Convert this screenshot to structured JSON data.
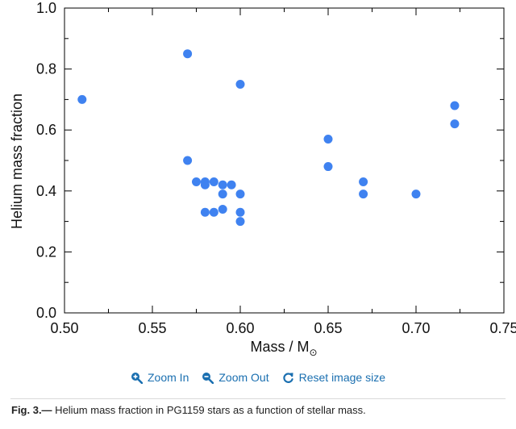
{
  "chart_data": {
    "type": "scatter",
    "title": "",
    "xlabel": "Mass / M",
    "xlabel_subscript": "⊙",
    "ylabel": "Helium mass fraction",
    "xlim": [
      0.5,
      0.75
    ],
    "ylim": [
      0.0,
      1.0
    ],
    "xticks": [
      0.5,
      0.55,
      0.6,
      0.65,
      0.7,
      0.75
    ],
    "yticks": [
      0.0,
      0.2,
      0.4,
      0.6,
      0.8,
      1.0
    ],
    "xtick_labels": [
      "0.50",
      "0.55",
      "0.60",
      "0.65",
      "0.70",
      "0.75"
    ],
    "ytick_labels": [
      "0.0",
      "0.2",
      "0.4",
      "0.6",
      "0.8",
      "1.0"
    ],
    "grid": false,
    "marker_color": "#3f82f0",
    "points": [
      {
        "x": 0.51,
        "y": 0.7
      },
      {
        "x": 0.57,
        "y": 0.85
      },
      {
        "x": 0.57,
        "y": 0.5
      },
      {
        "x": 0.575,
        "y": 0.43
      },
      {
        "x": 0.58,
        "y": 0.43
      },
      {
        "x": 0.58,
        "y": 0.42
      },
      {
        "x": 0.585,
        "y": 0.43
      },
      {
        "x": 0.59,
        "y": 0.42
      },
      {
        "x": 0.595,
        "y": 0.42
      },
      {
        "x": 0.59,
        "y": 0.39
      },
      {
        "x": 0.6,
        "y": 0.39
      },
      {
        "x": 0.58,
        "y": 0.33
      },
      {
        "x": 0.585,
        "y": 0.33
      },
      {
        "x": 0.59,
        "y": 0.34
      },
      {
        "x": 0.6,
        "y": 0.33
      },
      {
        "x": 0.6,
        "y": 0.3
      },
      {
        "x": 0.6,
        "y": 0.75
      },
      {
        "x": 0.65,
        "y": 0.57
      },
      {
        "x": 0.65,
        "y": 0.48
      },
      {
        "x": 0.67,
        "y": 0.43
      },
      {
        "x": 0.67,
        "y": 0.39
      },
      {
        "x": 0.7,
        "y": 0.39
      },
      {
        "x": 0.722,
        "y": 0.68
      },
      {
        "x": 0.722,
        "y": 0.62
      }
    ]
  },
  "controls": {
    "zoom_in_label": "Zoom In",
    "zoom_out_label": "Zoom Out",
    "reset_label": "Reset image size",
    "zoom_in_icon": "zoom-in-icon",
    "zoom_out_icon": "zoom-out-icon",
    "reset_icon": "refresh-icon",
    "link_color": "#1a6fb0"
  },
  "caption": {
    "label": "Fig. 3.—",
    "text": " Helium mass fraction in PG1159 stars as a function of stellar mass."
  }
}
